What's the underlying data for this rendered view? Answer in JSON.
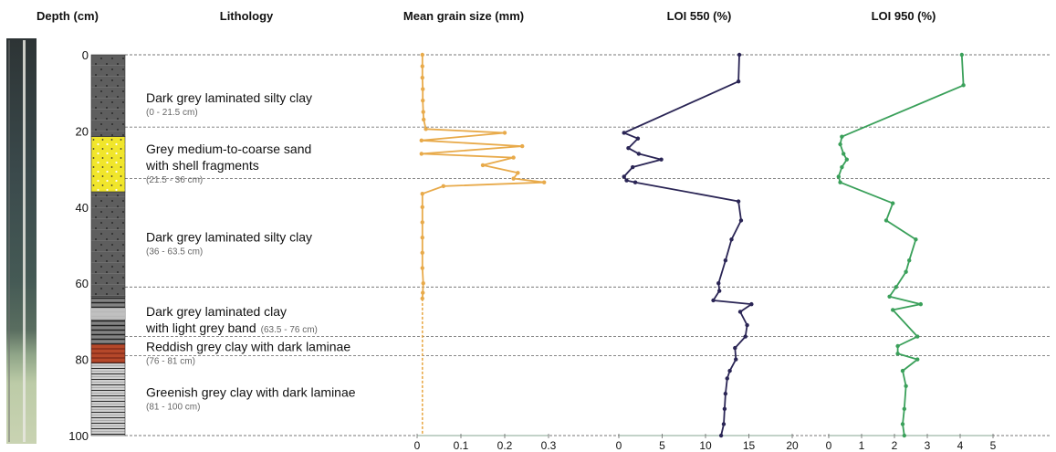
{
  "chart_data": {
    "type": "line",
    "orientation": "depth-profile",
    "depth_axis": {
      "label": "Depth (cm)",
      "range": [
        0,
        100
      ],
      "ticks": [
        0,
        20,
        40,
        60,
        80,
        100
      ],
      "inverted": true
    },
    "grid": {
      "horizontal_dashed_at_unit_boundaries": true
    },
    "lithology": {
      "title": "Lithology",
      "units": [
        {
          "name_lines": [
            "Dark grey laminated silty clay"
          ],
          "range_text": "(0 - 21.5 cm)",
          "inline_range": false,
          "top": 0,
          "bottom": 21.5,
          "boundary_line_depth": 19,
          "pattern": "dotted-grey",
          "color": "#5f5f5f"
        },
        {
          "name_lines": [
            "Grey medium-to-coarse sand",
            "with shell fragments"
          ],
          "range_text": "(21.5 - 36 cm)",
          "inline_range": false,
          "top": 21.5,
          "bottom": 36,
          "boundary_line_depth": 32.5,
          "pattern": "dotted-yellow",
          "color": "#f2e82a"
        },
        {
          "name_lines": [
            "Dark grey laminated silty clay"
          ],
          "range_text": "(36 - 63.5 cm)",
          "inline_range": false,
          "top": 36,
          "bottom": 63.5,
          "boundary_line_depth": 61,
          "pattern": "dotted-grey",
          "color": "#5f5f5f"
        },
        {
          "name_lines": [
            "Dark grey laminated clay",
            "with light grey band"
          ],
          "range_text": "(63.5 - 76 cm)",
          "inline_range": true,
          "top": 63.5,
          "bottom": 76,
          "boundary_line_depth": 74,
          "pattern": "laminated-grey",
          "color": "#6a6a6a"
        },
        {
          "name_lines": [
            "Reddish grey clay with dark laminae"
          ],
          "range_text": "(76 - 81 cm)",
          "inline_range": false,
          "top": 76,
          "bottom": 81,
          "boundary_line_depth": 79,
          "pattern": "laminated-red",
          "color": "#b84a2a"
        },
        {
          "name_lines": [
            "Greenish grey clay with dark laminae"
          ],
          "range_text": "(81 - 100 cm)",
          "inline_range": false,
          "top": 81,
          "bottom": 100,
          "boundary_line_depth": null,
          "pattern": "laminated-light",
          "color": "#cfcfcf"
        }
      ]
    },
    "series": [
      {
        "name": "Mean grain size (mm)",
        "color": "#e8aa4a",
        "xlim": [
          0,
          0.3
        ],
        "xticks": [
          0,
          0.1,
          0.2,
          0.3
        ],
        "xtick_labels": [
          "0",
          "0.1",
          "0.2",
          "0.3"
        ],
        "dashed_below_depth": 64,
        "points": [
          {
            "x": 0.012,
            "depth": 0
          },
          {
            "x": 0.012,
            "depth": 3
          },
          {
            "x": 0.012,
            "depth": 6
          },
          {
            "x": 0.013,
            "depth": 9
          },
          {
            "x": 0.013,
            "depth": 12
          },
          {
            "x": 0.014,
            "depth": 15
          },
          {
            "x": 0.015,
            "depth": 17
          },
          {
            "x": 0.02,
            "depth": 19.5
          },
          {
            "x": 0.2,
            "depth": 20.5
          },
          {
            "x": 0.01,
            "depth": 22.5
          },
          {
            "x": 0.24,
            "depth": 24
          },
          {
            "x": 0.01,
            "depth": 26
          },
          {
            "x": 0.22,
            "depth": 27
          },
          {
            "x": 0.15,
            "depth": 29
          },
          {
            "x": 0.23,
            "depth": 31
          },
          {
            "x": 0.22,
            "depth": 32.5
          },
          {
            "x": 0.29,
            "depth": 33.5
          },
          {
            "x": 0.06,
            "depth": 34.5
          },
          {
            "x": 0.012,
            "depth": 36.5
          },
          {
            "x": 0.012,
            "depth": 40
          },
          {
            "x": 0.012,
            "depth": 44
          },
          {
            "x": 0.012,
            "depth": 48
          },
          {
            "x": 0.012,
            "depth": 52
          },
          {
            "x": 0.012,
            "depth": 56
          },
          {
            "x": 0.014,
            "depth": 60
          },
          {
            "x": 0.013,
            "depth": 62.5
          },
          {
            "x": 0.012,
            "depth": 64
          },
          {
            "x": 0.012,
            "depth": 100
          }
        ]
      },
      {
        "name": "LOI 550 (%)",
        "color": "#2a2555",
        "xlim": [
          0,
          20
        ],
        "xticks": [
          0,
          5,
          10,
          15,
          20
        ],
        "xtick_labels": [
          "0",
          "5",
          "10",
          "15",
          "20"
        ],
        "points": [
          {
            "x": 13.9,
            "depth": 0
          },
          {
            "x": 13.8,
            "depth": 7
          },
          {
            "x": 0.6,
            "depth": 20.5
          },
          {
            "x": 2.2,
            "depth": 22
          },
          {
            "x": 1.1,
            "depth": 24.5
          },
          {
            "x": 2.3,
            "depth": 26
          },
          {
            "x": 4.9,
            "depth": 27.5
          },
          {
            "x": 1.6,
            "depth": 29.5
          },
          {
            "x": 0.6,
            "depth": 32
          },
          {
            "x": 0.9,
            "depth": 33
          },
          {
            "x": 1.9,
            "depth": 33.5
          },
          {
            "x": 13.8,
            "depth": 38.5
          },
          {
            "x": 14.1,
            "depth": 43.5
          },
          {
            "x": 13,
            "depth": 48.5
          },
          {
            "x": 12.3,
            "depth": 54
          },
          {
            "x": 11.5,
            "depth": 60
          },
          {
            "x": 11.6,
            "depth": 62
          },
          {
            "x": 10.9,
            "depth": 64.5
          },
          {
            "x": 15.3,
            "depth": 65.5
          },
          {
            "x": 14,
            "depth": 67.5
          },
          {
            "x": 14.8,
            "depth": 71
          },
          {
            "x": 14.6,
            "depth": 74
          },
          {
            "x": 13.4,
            "depth": 77
          },
          {
            "x": 13.5,
            "depth": 80
          },
          {
            "x": 12.8,
            "depth": 83
          },
          {
            "x": 12.5,
            "depth": 85
          },
          {
            "x": 12.3,
            "depth": 89
          },
          {
            "x": 12.2,
            "depth": 93
          },
          {
            "x": 12.1,
            "depth": 97
          },
          {
            "x": 11.8,
            "depth": 100
          }
        ]
      },
      {
        "name": "LOI 950 (%)",
        "color": "#3aa05a",
        "xlim": [
          0,
          5
        ],
        "xticks": [
          0,
          1,
          2,
          3,
          4,
          5
        ],
        "xtick_labels": [
          "0",
          "1",
          "2",
          "3",
          "4",
          "5"
        ],
        "points": [
          {
            "x": 4.05,
            "depth": 0
          },
          {
            "x": 4.1,
            "depth": 8
          },
          {
            "x": 0.4,
            "depth": 21.5
          },
          {
            "x": 0.35,
            "depth": 23.5
          },
          {
            "x": 0.45,
            "depth": 26
          },
          {
            "x": 0.55,
            "depth": 27.5
          },
          {
            "x": 0.4,
            "depth": 29.5
          },
          {
            "x": 0.3,
            "depth": 32
          },
          {
            "x": 0.35,
            "depth": 33.5
          },
          {
            "x": 1.95,
            "depth": 39
          },
          {
            "x": 1.75,
            "depth": 43.5
          },
          {
            "x": 2.65,
            "depth": 48.5
          },
          {
            "x": 2.45,
            "depth": 54
          },
          {
            "x": 2.35,
            "depth": 57
          },
          {
            "x": 2.05,
            "depth": 61
          },
          {
            "x": 1.85,
            "depth": 63.5
          },
          {
            "x": 2.8,
            "depth": 65.5
          },
          {
            "x": 1.95,
            "depth": 67
          },
          {
            "x": 2.7,
            "depth": 74
          },
          {
            "x": 2.1,
            "depth": 76.5
          },
          {
            "x": 2.1,
            "depth": 78.5
          },
          {
            "x": 2.7,
            "depth": 80
          },
          {
            "x": 2.25,
            "depth": 83
          },
          {
            "x": 2.35,
            "depth": 87
          },
          {
            "x": 2.3,
            "depth": 93
          },
          {
            "x": 2.25,
            "depth": 97
          },
          {
            "x": 2.3,
            "depth": 100
          }
        ]
      }
    ]
  }
}
